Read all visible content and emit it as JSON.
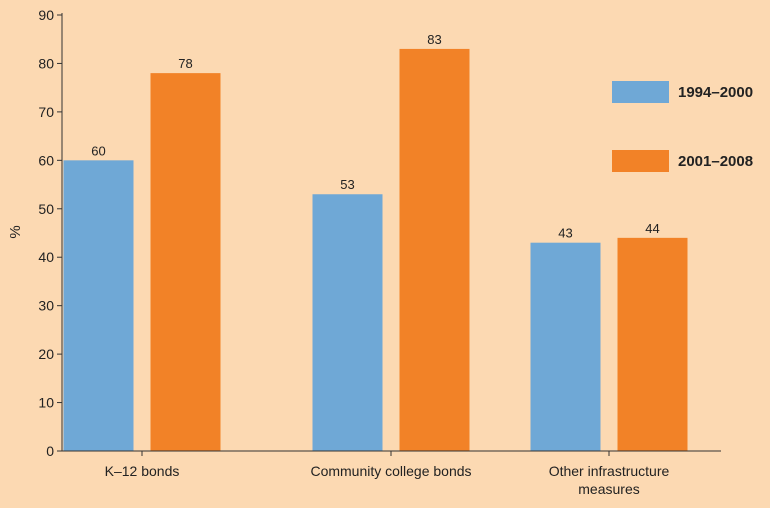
{
  "chart_data": {
    "type": "bar",
    "title": "",
    "xlabel": "",
    "ylabel": "%",
    "ylim": [
      0,
      90
    ],
    "yticks": [
      0,
      10,
      20,
      30,
      40,
      50,
      60,
      70,
      80,
      90
    ],
    "categories": [
      [
        "K–12 bonds"
      ],
      [
        "Community college bonds"
      ],
      [
        "Other infrastructure",
        "measures"
      ]
    ],
    "series": [
      {
        "name": "1994–2000",
        "color": "#6fa8d6",
        "values": [
          60,
          53,
          43
        ]
      },
      {
        "name": "2001–2008",
        "color": "#f28227",
        "values": [
          78,
          83,
          44
        ]
      }
    ],
    "legend_position": "right",
    "grid": false
  }
}
